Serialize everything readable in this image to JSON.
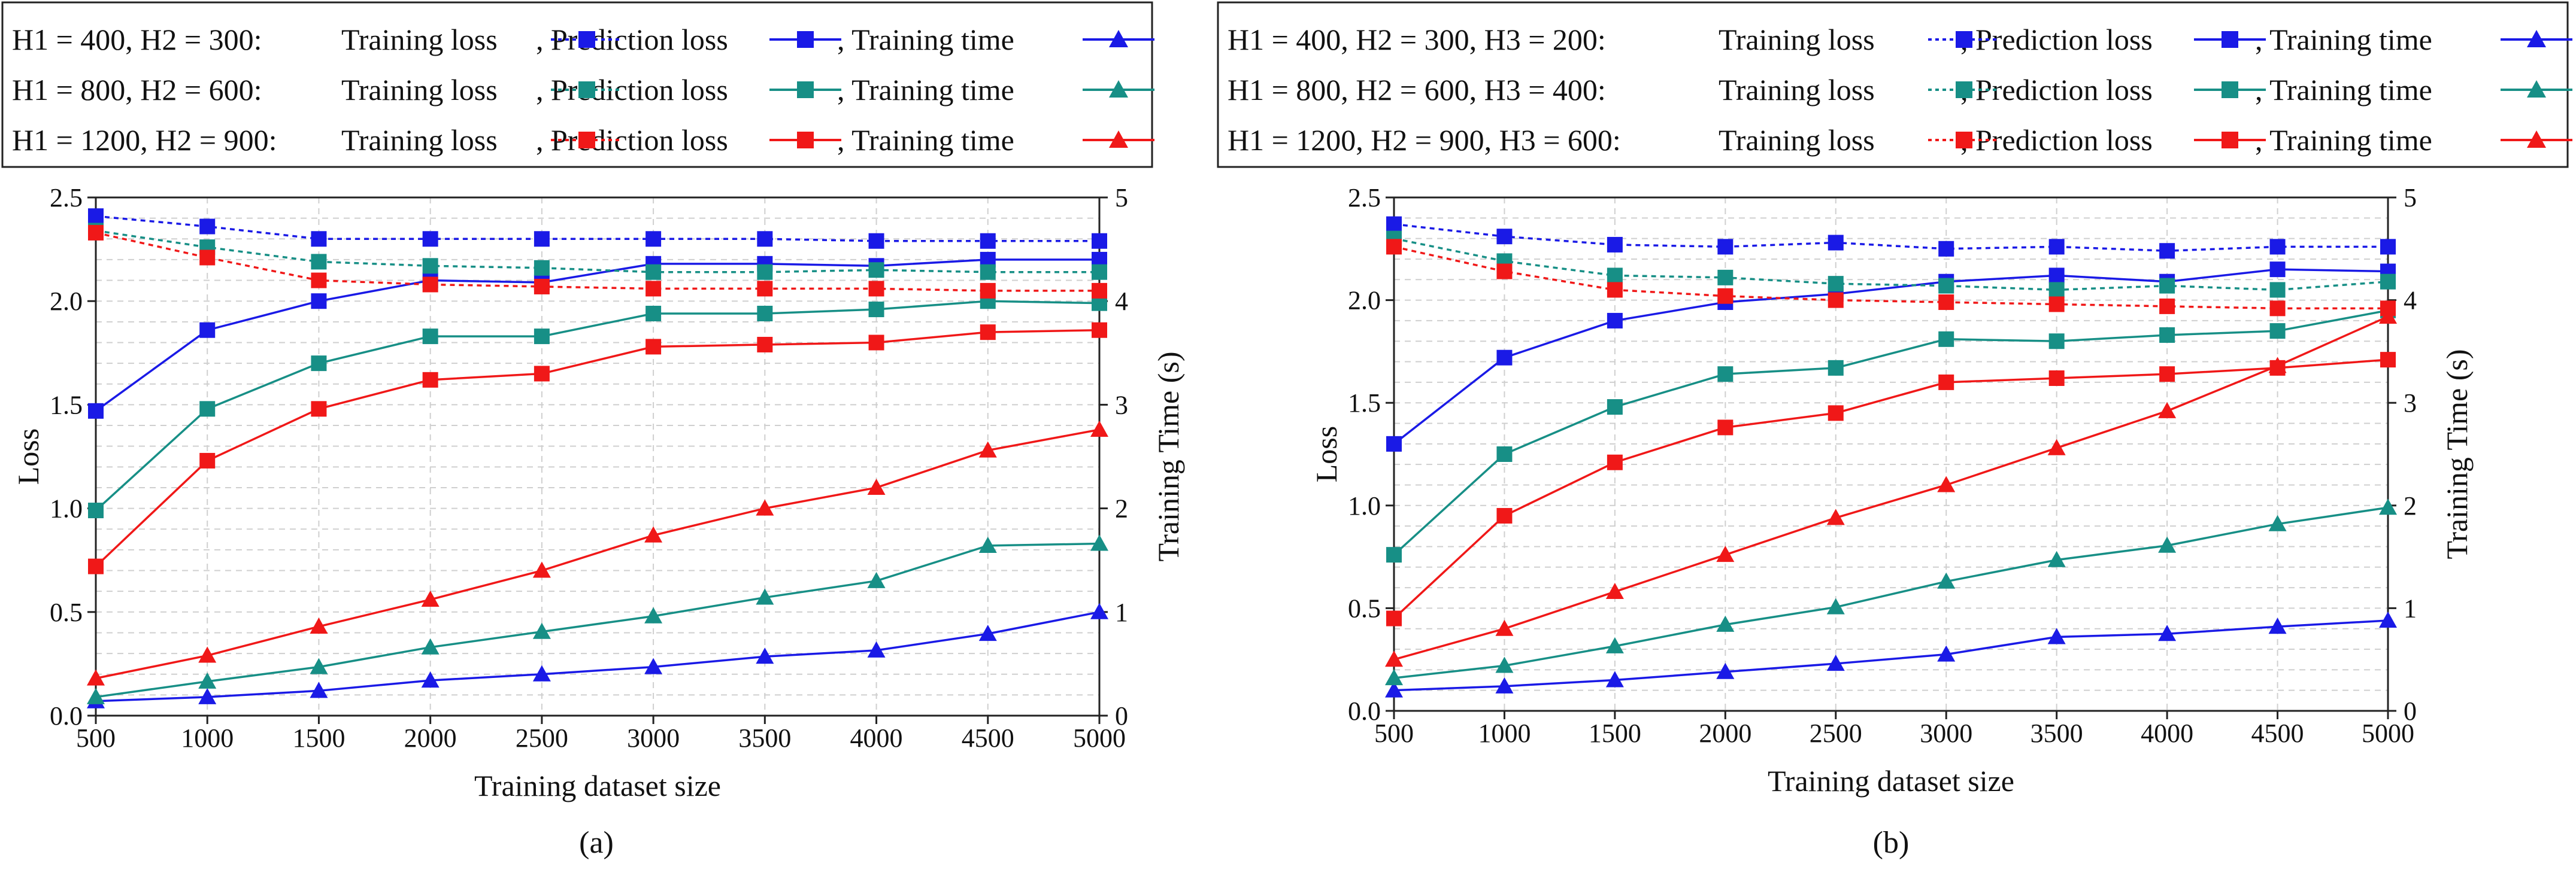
{
  "colors": {
    "small": "#1a1ae6",
    "medium": "#178f86",
    "large": "#f01818"
  },
  "legend_terms": {
    "training_loss": "Training loss",
    "prediction_loss": ", Prediction loss",
    "training_time": ", Training time"
  },
  "chart_data": [
    {
      "type": "line",
      "panel_label": "(a)",
      "xlabel": "Training dataset size",
      "ylabel_left": "Loss",
      "ylabel_right": "Training Time (s)",
      "x": [
        500,
        1000,
        1500,
        2000,
        2500,
        3000,
        3500,
        4000,
        4500,
        5000
      ],
      "ylim_left": [
        0.0,
        2.5
      ],
      "ylim_right": [
        0,
        5
      ],
      "yticks_left": [
        "0.0",
        "0.5",
        "1.0",
        "1.5",
        "2.0",
        "2.5"
      ],
      "yticks_right": [
        "0",
        "1",
        "2",
        "3",
        "4",
        "5"
      ],
      "grid": true,
      "configs": [
        {
          "name": "H1 = 400, H2 = 300:",
          "color": "small",
          "training_loss": [
            2.41,
            2.36,
            2.3,
            2.3,
            2.3,
            2.3,
            2.3,
            2.29,
            2.29,
            2.29
          ],
          "prediction_loss": [
            1.47,
            1.86,
            2.0,
            2.1,
            2.09,
            2.18,
            2.18,
            2.17,
            2.2,
            2.2
          ],
          "training_time": [
            0.14,
            0.18,
            0.24,
            0.34,
            0.4,
            0.47,
            0.57,
            0.63,
            0.79,
            1.0
          ]
        },
        {
          "name": "H1 = 800, H2 = 600:",
          "color": "medium",
          "training_loss": [
            2.34,
            2.26,
            2.19,
            2.17,
            2.16,
            2.14,
            2.14,
            2.15,
            2.14,
            2.14
          ],
          "prediction_loss": [
            0.99,
            1.48,
            1.7,
            1.83,
            1.83,
            1.94,
            1.94,
            1.96,
            2.0,
            1.99
          ],
          "training_time": [
            0.18,
            0.33,
            0.47,
            0.66,
            0.81,
            0.96,
            1.14,
            1.3,
            1.64,
            1.66
          ]
        },
        {
          "name": "H1 = 1200, H2 = 900:",
          "color": "large",
          "training_loss": [
            2.33,
            2.21,
            2.1,
            2.08,
            2.07,
            2.06,
            2.06,
            2.06,
            2.05,
            2.05
          ],
          "prediction_loss": [
            0.72,
            1.23,
            1.48,
            1.62,
            1.65,
            1.78,
            1.79,
            1.8,
            1.85,
            1.86
          ],
          "training_time": [
            0.36,
            0.58,
            0.86,
            1.12,
            1.4,
            1.74,
            2.0,
            2.2,
            2.56,
            2.76
          ]
        }
      ]
    },
    {
      "type": "line",
      "panel_label": "(b)",
      "xlabel": "Training dataset size",
      "ylabel_left": "Loss",
      "ylabel_right": "Training Time (s)",
      "x": [
        500,
        1000,
        1500,
        2000,
        2500,
        3000,
        3500,
        4000,
        4500,
        5000
      ],
      "ylim_left": [
        0.0,
        2.5
      ],
      "ylim_right": [
        0,
        5
      ],
      "yticks_left": [
        "0.0",
        "0.5",
        "1.0",
        "1.5",
        "2.0",
        "2.5"
      ],
      "yticks_right": [
        "0",
        "1",
        "2",
        "3",
        "4",
        "5"
      ],
      "grid": true,
      "configs": [
        {
          "name": "H1 = 400, H2 = 300, H3 = 200:",
          "color": "small",
          "training_loss": [
            2.37,
            2.31,
            2.27,
            2.26,
            2.28,
            2.25,
            2.26,
            2.24,
            2.26,
            2.26
          ],
          "prediction_loss": [
            1.3,
            1.72,
            1.9,
            1.99,
            2.03,
            2.09,
            2.12,
            2.09,
            2.15,
            2.14
          ],
          "training_time": [
            0.2,
            0.24,
            0.3,
            0.38,
            0.46,
            0.55,
            0.72,
            0.75,
            0.82,
            0.88
          ]
        },
        {
          "name": "H1 = 800, H2 = 600, H3 = 400:",
          "color": "medium",
          "training_loss": [
            2.3,
            2.19,
            2.12,
            2.11,
            2.08,
            2.07,
            2.05,
            2.07,
            2.05,
            2.09
          ],
          "prediction_loss": [
            0.76,
            1.25,
            1.48,
            1.64,
            1.67,
            1.81,
            1.8,
            1.83,
            1.85,
            1.95
          ],
          "training_time": [
            0.32,
            0.44,
            0.63,
            0.84,
            1.01,
            1.26,
            1.47,
            1.61,
            1.82,
            1.98
          ]
        },
        {
          "name": "H1 = 1200, H2 = 900, H3 = 600:",
          "color": "large",
          "training_loss": [
            2.26,
            2.14,
            2.05,
            2.02,
            2.0,
            1.99,
            1.98,
            1.97,
            1.96,
            1.96
          ],
          "prediction_loss": [
            0.45,
            0.95,
            1.21,
            1.38,
            1.45,
            1.6,
            1.62,
            1.64,
            1.67,
            1.71
          ],
          "training_time": [
            0.5,
            0.8,
            1.16,
            1.52,
            1.88,
            2.2,
            2.56,
            2.92,
            3.36,
            3.84
          ]
        }
      ]
    }
  ]
}
